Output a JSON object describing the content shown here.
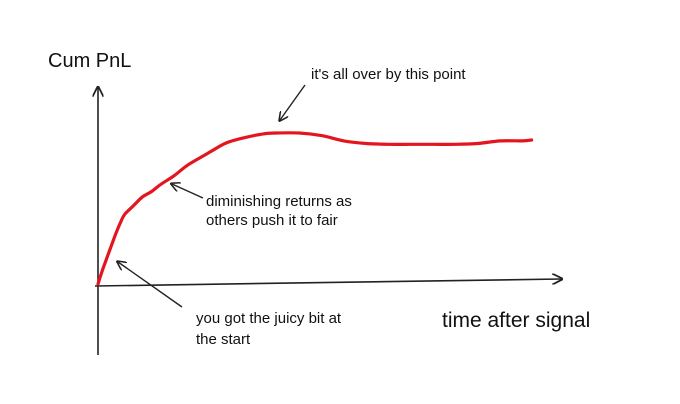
{
  "chart_data": {
    "type": "line",
    "title": "",
    "xlabel": "time after signal",
    "ylabel": "Cum PnL",
    "grid": false,
    "legend": "none",
    "xlim": [
      0,
      100
    ],
    "ylim": [
      0,
      100
    ],
    "series": [
      {
        "color": "#e3161f",
        "x": [
          0,
          1,
          2,
          3,
          4,
          5,
          6,
          8,
          10,
          12,
          14,
          17,
          20,
          24,
          28,
          30,
          33,
          37,
          40,
          45,
          50,
          55,
          60,
          65,
          70,
          75,
          80,
          85,
          90,
          95,
          97
        ],
        "y": [
          0,
          8,
          15,
          22,
          29,
          35,
          40,
          45,
          50,
          53,
          57,
          62,
          68,
          74,
          80,
          82,
          84,
          86,
          86.5,
          86.5,
          85,
          82,
          80.5,
          80,
          80,
          80,
          80,
          80.5,
          82,
          82,
          82.5
        ]
      }
    ],
    "annotations": [
      {
        "lines": [
          "it's all over by this point"
        ]
      },
      {
        "lines": [
          "diminishing returns as",
          "others push it to fair"
        ]
      },
      {
        "lines": [
          "you got the juicy bit at",
          "the start"
        ]
      }
    ]
  },
  "colors": {
    "series": "#e3161f",
    "axes": "#222222",
    "text": "#111111"
  }
}
